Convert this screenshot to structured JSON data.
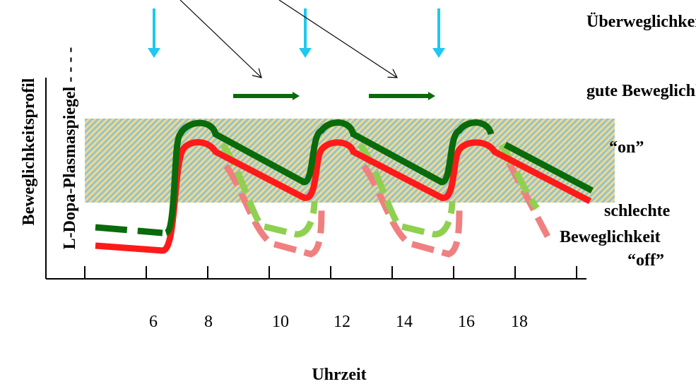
{
  "labels": {
    "overmobility": "Überweglichkeit",
    "good": "gute Beweglichkeit",
    "on": "“on”",
    "bad_1": "schlechte",
    "bad_2": "Beweglichkeit",
    "off": "“off”"
  },
  "y_axis": {
    "profile": "Beweglichkeitsprofil",
    "plasma": "L-Dopa-Plasmaspiegel - - - -"
  },
  "x_axis": {
    "title": "Uhrzeit",
    "ticks": [
      6,
      8,
      10,
      12,
      14,
      16,
      18
    ]
  }
}
